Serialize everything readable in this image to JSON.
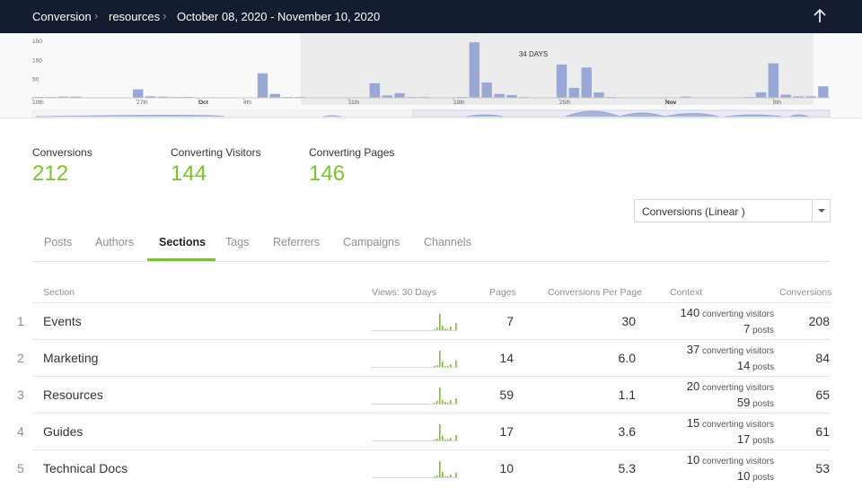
{
  "breadcrumb": {
    "root": "Conversion",
    "section": "resources",
    "range": "October 08, 2020 - November 10, 2020"
  },
  "overview": {
    "yticks": [
      "150",
      "100",
      "50"
    ],
    "xticks": [
      "10th",
      "27th",
      "Oct",
      "4th",
      "11th",
      "18th",
      "25th",
      "Nov",
      "8th"
    ],
    "selection_label": "34 DAYS",
    "bars": [
      2,
      2,
      3,
      3,
      0,
      0,
      0,
      0,
      22,
      4,
      3,
      2,
      2,
      0,
      0,
      1,
      0,
      0,
      64,
      10,
      2,
      2,
      0,
      0,
      0,
      0,
      1,
      38,
      6,
      12,
      2,
      2,
      0,
      0,
      2,
      145,
      40,
      10,
      7,
      2,
      0,
      0,
      87,
      26,
      79,
      14,
      2,
      0,
      0,
      0,
      0,
      0,
      3,
      0,
      0,
      0,
      0,
      2,
      14,
      90,
      8,
      4,
      4,
      30
    ],
    "selection": {
      "start": 18,
      "end": 64
    }
  },
  "kpis": [
    {
      "label": "Conversions",
      "value": "212"
    },
    {
      "label": "Converting Visitors",
      "value": "144"
    },
    {
      "label": "Converting Pages",
      "value": "146"
    }
  ],
  "select": {
    "value": "Conversions (Linear )"
  },
  "tabs": [
    "Posts",
    "Authors",
    "Sections",
    "Tags",
    "Referrers",
    "Campaigns",
    "Channels"
  ],
  "active_tab": "Sections",
  "table": {
    "headers": {
      "section": "Section",
      "views": "Views: 30 Days",
      "pages": "Pages",
      "cpp": "Conversions Per Page",
      "context": "Context",
      "conversions": "Conversions"
    },
    "rows": [
      {
        "rank": "1",
        "name": "Events",
        "pages": "7",
        "cpp": "30",
        "visitors": "140",
        "visitors_label": "converting visitors",
        "posts": "7",
        "posts_label": "posts",
        "conversions": "208"
      },
      {
        "rank": "2",
        "name": "Marketing",
        "pages": "14",
        "cpp": "6.0",
        "visitors": "37",
        "visitors_label": "converting visitors",
        "posts": "14",
        "posts_label": "posts",
        "conversions": "84"
      },
      {
        "rank": "3",
        "name": "Resources",
        "pages": "59",
        "cpp": "1.1",
        "visitors": "20",
        "visitors_label": "converting visitors",
        "posts": "59",
        "posts_label": "posts",
        "conversions": "65"
      },
      {
        "rank": "4",
        "name": "Guides",
        "pages": "17",
        "cpp": "3.6",
        "visitors": "15",
        "visitors_label": "converting visitors",
        "posts": "17",
        "posts_label": "posts",
        "conversions": "61"
      },
      {
        "rank": "5",
        "name": "Technical Docs",
        "pages": "10",
        "cpp": "5.3",
        "visitors": "10",
        "visitors_label": "converting visitors",
        "posts": "10",
        "posts_label": "posts",
        "conversions": "53"
      }
    ]
  },
  "colors": {
    "accent": "#7cc22d",
    "topbar": "#141c30",
    "bar": "#9aa8d6",
    "wave": "#8b9dd3"
  }
}
